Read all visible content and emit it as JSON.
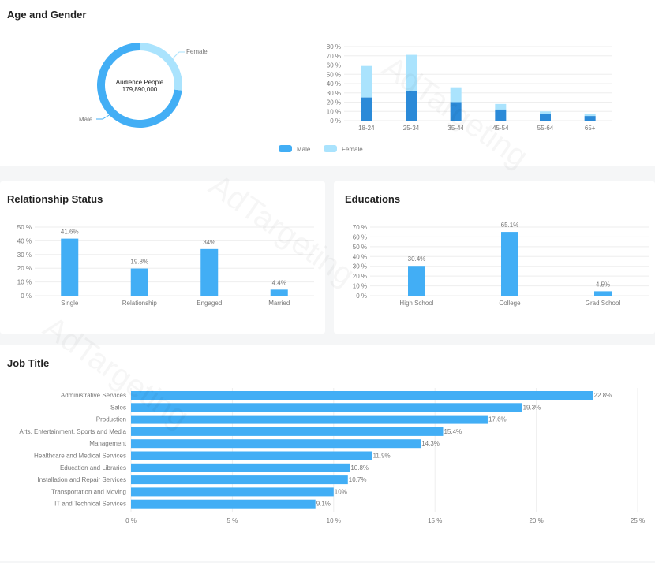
{
  "age_gender": {
    "title": "Age and Gender",
    "center_label": "Audience People",
    "center_value": "179,890,000"
  },
  "relationship": {
    "title": "Relationship Status"
  },
  "educations": {
    "title": "Educations"
  },
  "job": {
    "title": "Job Title"
  },
  "watermark": "AdTargeting",
  "colors": {
    "male": "#2b8ad8",
    "female": "#aae3fd",
    "bar": "#42aef5",
    "donut_male": "#42aef5"
  },
  "chart_data": [
    {
      "type": "pie",
      "name": "gender-donut",
      "labels": [
        "Male",
        "Female"
      ],
      "values": [
        73,
        27
      ]
    },
    {
      "type": "bar",
      "name": "age",
      "stacked": true,
      "categories": [
        "18-24",
        "25-34",
        "35-44",
        "45-54",
        "55-64",
        "65+"
      ],
      "series": [
        {
          "name": "Male",
          "values": [
            25,
            32,
            20,
            12,
            7,
            5
          ]
        },
        {
          "name": "Female",
          "values": [
            34,
            39,
            16,
            6,
            3,
            2
          ]
        }
      ],
      "ylim": [
        0,
        80
      ],
      "yticks": [
        "0 %",
        "10 %",
        "20 %",
        "30 %",
        "40 %",
        "50 %",
        "60 %",
        "70 %",
        "80 %"
      ],
      "legend": "bottom"
    },
    {
      "type": "bar",
      "name": "relationship",
      "categories": [
        "Single",
        "Relationship",
        "Engaged",
        "Married"
      ],
      "values": [
        41.6,
        19.8,
        34,
        4.4
      ],
      "labels": [
        "41.6%",
        "19.8%",
        "34%",
        "4.4%"
      ],
      "ylim": [
        0,
        50
      ],
      "yticks": [
        "0 %",
        "10 %",
        "20 %",
        "30 %",
        "40 %",
        "50 %"
      ]
    },
    {
      "type": "bar",
      "name": "educations",
      "categories": [
        "High School",
        "College",
        "Grad School"
      ],
      "values": [
        30.4,
        65.1,
        4.5
      ],
      "labels": [
        "30.4%",
        "65.1%",
        "4.5%"
      ],
      "ylim": [
        0,
        70
      ],
      "yticks": [
        "0 %",
        "10 %",
        "20 %",
        "30 %",
        "40 %",
        "50 %",
        "60 %",
        "70 %"
      ]
    },
    {
      "type": "bar",
      "orientation": "horizontal",
      "name": "job",
      "categories": [
        "Administrative Services",
        "Sales",
        "Production",
        "Arts, Entertainment, Sports and Media",
        "Management",
        "Healthcare and Medical Services",
        "Education and Libraries",
        "Installation and Repair Services",
        "Transportation and Moving",
        "IT and Technical Services"
      ],
      "values": [
        22.8,
        19.3,
        17.6,
        15.4,
        14.3,
        11.9,
        10.8,
        10.7,
        10,
        9.1
      ],
      "labels": [
        "22.8%",
        "19.3%",
        "17.6%",
        "15.4%",
        "14.3%",
        "11.9%",
        "10.8%",
        "10.7%",
        "10%",
        "9.1%"
      ],
      "xlim": [
        0,
        25
      ],
      "xticks": [
        "0 %",
        "5 %",
        "10 %",
        "15 %",
        "20 %",
        "25 %"
      ]
    }
  ]
}
